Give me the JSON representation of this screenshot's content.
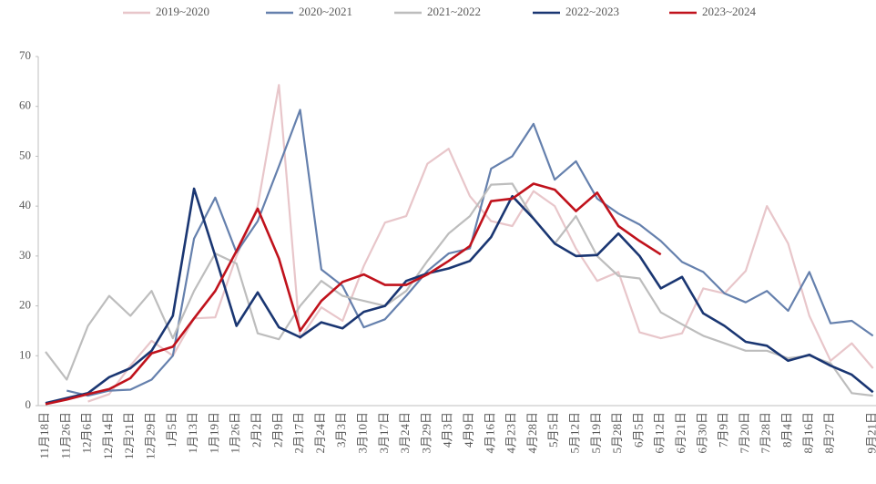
{
  "chart_data": {
    "type": "line",
    "categories": [
      "11月18日",
      "11月26日",
      "12月6日",
      "12月14日",
      "12月21日",
      "12月29日",
      "1月5日",
      "1月13日",
      "1月19日",
      "1月26日",
      "2月2日",
      "2月9日",
      "2月17日",
      "2月24日",
      "3月3日",
      "3月10日",
      "3月17日",
      "3月24日",
      "3月29日",
      "4月3日",
      "4月9日",
      "4月16日",
      "4月23日",
      "4月28日",
      "5月5日",
      "5月12日",
      "5月19日",
      "5月28日",
      "6月5日",
      "6月12日",
      "6月21日",
      "6月30日",
      "7月9日",
      "7月20日",
      "7月28日",
      "8月4日",
      "8月16日",
      "8月27日",
      null,
      "9月21日"
    ],
    "ylim": [
      0,
      70
    ],
    "yticks": [
      0,
      10,
      20,
      30,
      40,
      50,
      60,
      70
    ],
    "grid": false,
    "series": [
      {
        "name": "2019~2020",
        "color": "#e8c6ca",
        "values": [
          null,
          null,
          0.8,
          2.3,
          8,
          13,
          10,
          17.5,
          17.7,
          30,
          40,
          64.3,
          13.5,
          19.7,
          17,
          28,
          36.7,
          38,
          48.5,
          51.5,
          42,
          37,
          36,
          43,
          40,
          31.5,
          25,
          26.8,
          14.7,
          13.5,
          14.5,
          23.5,
          22.5,
          27,
          40,
          32.5,
          18,
          9,
          12.5,
          7.5
        ]
      },
      {
        "name": "2020~2021",
        "color": "#6580ad",
        "values": [
          null,
          3,
          2,
          3,
          3.2,
          5.2,
          10,
          33.5,
          41.7,
          30.7,
          37,
          48,
          59.3,
          27.3,
          24,
          15.7,
          17.3,
          22,
          27,
          30.5,
          31.5,
          47.5,
          50,
          56.5,
          45.3,
          49,
          41.5,
          38.5,
          36.3,
          33,
          28.8,
          26.8,
          22.5,
          20.7,
          23,
          19,
          26.8,
          16.5,
          17,
          14
        ]
      },
      {
        "name": "2021~2022",
        "color": "#bdbdbd",
        "values": [
          10.8,
          5.2,
          16,
          22,
          18,
          23,
          13.5,
          23,
          30.5,
          28.5,
          14.5,
          13.3,
          20,
          25,
          22,
          21,
          20,
          23,
          29,
          34.5,
          38,
          44.3,
          44.5,
          37.5,
          32.5,
          38,
          30,
          26,
          25.5,
          18.7,
          16.3,
          14,
          12.5,
          11,
          11,
          9.5,
          10,
          8.5,
          2.5,
          2
        ]
      },
      {
        "name": "2022~2023",
        "color": "#1a3672",
        "values": [
          0.5,
          1.5,
          2.5,
          5.7,
          7.5,
          11,
          18,
          43.5,
          30,
          16,
          22.7,
          15.7,
          13.7,
          16.7,
          15.5,
          18.8,
          20,
          25,
          26.5,
          27.5,
          29,
          33.8,
          42,
          37.5,
          32.5,
          30,
          30.2,
          34.5,
          30,
          23.5,
          25.8,
          18.5,
          16,
          12.8,
          12,
          9,
          10.2,
          8,
          6.2,
          2.7
        ]
      },
      {
        "name": "2023~2024",
        "color": "#c0121c",
        "values": [
          0.3,
          1.2,
          2.3,
          3.3,
          5.5,
          10.5,
          11.8,
          17.5,
          23,
          31,
          39.5,
          29.5,
          15,
          21,
          24.8,
          26.3,
          24.2,
          24.2,
          26.3,
          29,
          32,
          41,
          41.5,
          44.5,
          43.3,
          39,
          42.7,
          36,
          33,
          30.3,
          null,
          null,
          null,
          null,
          null,
          null,
          null,
          null,
          null,
          null
        ]
      }
    ]
  }
}
